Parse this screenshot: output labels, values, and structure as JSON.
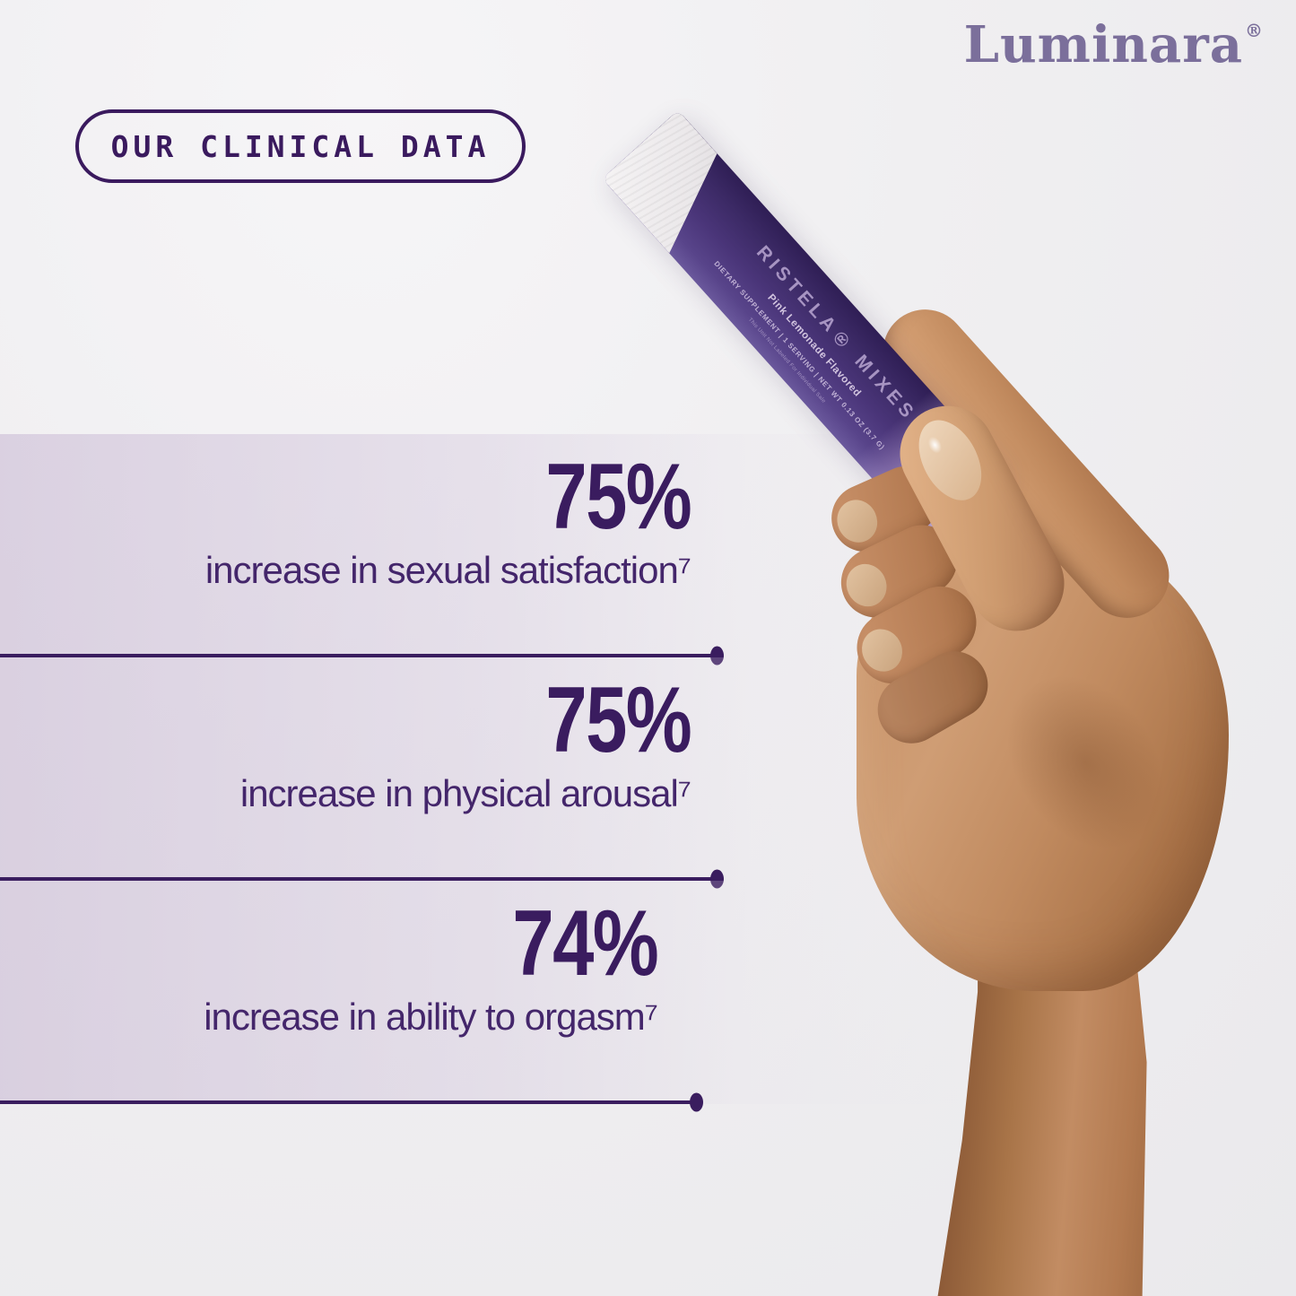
{
  "brand": {
    "logo_text": "Luminara",
    "registered_mark": "®"
  },
  "badge": {
    "label": "OUR CLINICAL DATA"
  },
  "stats": [
    {
      "value": "75%",
      "caption": "increase in sexual satisfaction⁷"
    },
    {
      "value": "75%",
      "caption": "increase in physical arousal⁷"
    },
    {
      "value": "74%",
      "caption": "increase in ability to orgasm⁷"
    }
  ],
  "product": {
    "name_line": "RISTELA® MIXES",
    "flavor_line": "Pink Lemonade Flavored",
    "details_line": "DIETARY SUPPLEMENT | 1 SERVING | NET WT 0.13 OZ (3.7 G)",
    "fine_print": "This Unit Not Labeled For Individual Sale"
  },
  "colors": {
    "accent_purple": "#3a1d5f",
    "logo_purple": "#7b6f9b",
    "packet_purple": "#4a3579",
    "band_lavender": "#d9cfe2",
    "skin_tone": "#c08a61",
    "background": "#f0eff1"
  }
}
